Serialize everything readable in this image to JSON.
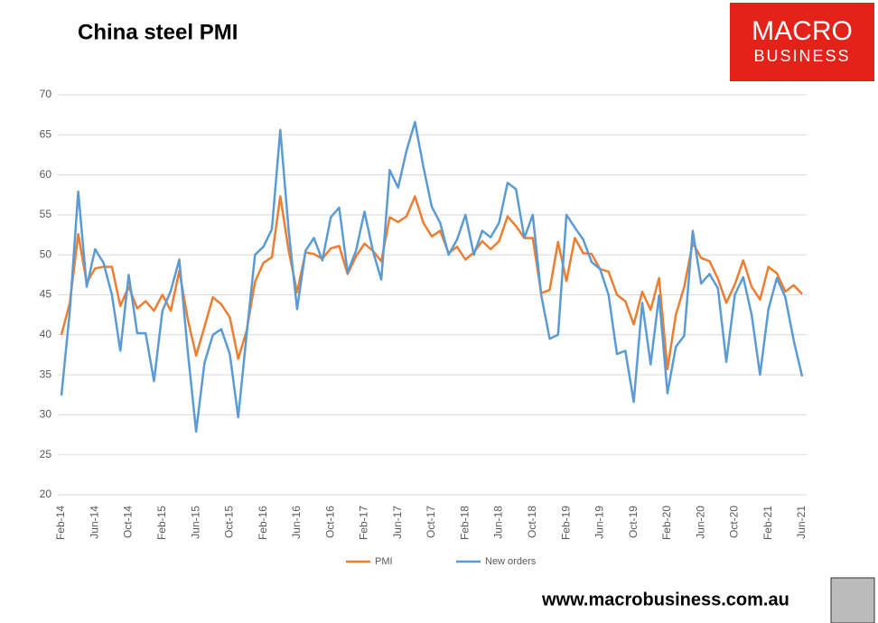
{
  "chart_data": {
    "type": "line",
    "title": "China steel PMI",
    "categories": [
      "Feb-14",
      null,
      null,
      null,
      "Jun-14",
      null,
      null,
      null,
      "Oct-14",
      null,
      null,
      null,
      "Feb-15",
      null,
      null,
      null,
      "Jun-15",
      null,
      null,
      null,
      "Oct-15",
      null,
      null,
      null,
      "Feb-16",
      null,
      null,
      null,
      "Jun-16",
      null,
      null,
      null,
      "Oct-16",
      null,
      null,
      null,
      "Feb-17",
      null,
      null,
      null,
      "Jun-17",
      null,
      null,
      null,
      "Oct-17",
      null,
      null,
      null,
      "Feb-18",
      null,
      null,
      null,
      "Jun-18",
      null,
      null,
      null,
      "Oct-18",
      null,
      null,
      null,
      "Feb-19",
      null,
      null,
      null,
      "Jun-19",
      null,
      null,
      null,
      "Oct-19",
      null,
      null,
      null,
      "Feb-20",
      null,
      null,
      null,
      "Jun-20",
      null,
      null,
      null,
      "Oct-20",
      null,
      null,
      null,
      "Feb-21",
      null,
      null,
      null,
      "Jun-21"
    ],
    "series": [
      {
        "name": "PMI",
        "color": "#ed7d31",
        "values": [
          40,
          44,
          52.6,
          46.5,
          48.3,
          48.5,
          48.5,
          43.6,
          46,
          43.3,
          44.2,
          43,
          45,
          43,
          48,
          42,
          37.4,
          41,
          44.7,
          43.8,
          42.2,
          37,
          40.5,
          46.6,
          49,
          49.7,
          57.3,
          50.5,
          45.3,
          50.3,
          50.1,
          49.5,
          50.8,
          51.1,
          47.6,
          49.8,
          51.4,
          50.5,
          49.2,
          54.7,
          54.1,
          54.8,
          57.3,
          54,
          52.3,
          53,
          50.2,
          51,
          49.4,
          50.3,
          51.7,
          50.7,
          51.7,
          54.8,
          53.6,
          52.1,
          52.1,
          45.2,
          45.6,
          51.6,
          46.7,
          52.1,
          50.2,
          50.1,
          48.2,
          47.9,
          45,
          44.2,
          41.3,
          45.4,
          43.1,
          47.1,
          35.7,
          42.5,
          46,
          51.5,
          49.6,
          49.2,
          47,
          44,
          46.3,
          49.3,
          46,
          44.4,
          48.5,
          47.7,
          45.4,
          46.2,
          45.1
        ]
      },
      {
        "name": "New orders",
        "color": "#5b9bd5",
        "values": [
          32.4,
          43,
          57.9,
          46,
          50.7,
          49,
          45,
          38,
          47.5,
          40.2,
          40.2,
          34.2,
          43,
          45.5,
          49.4,
          38,
          27.9,
          36.5,
          40,
          40.7,
          37.6,
          29.7,
          40,
          50,
          51,
          53.2,
          65.6,
          53,
          43.2,
          50.5,
          52.1,
          49.3,
          54.7,
          55.9,
          47.8,
          50.5,
          55.4,
          50.5,
          46.9,
          60.6,
          58.4,
          63,
          66.6,
          61,
          56,
          54,
          50,
          51.9,
          55,
          50,
          53,
          52.2,
          54,
          59,
          58.2,
          52.1,
          55,
          45,
          39.5,
          40,
          55,
          53.4,
          51.9,
          49.1,
          48.2,
          45,
          37.6,
          38,
          31.6,
          44,
          36.3,
          44.9,
          32.7,
          38.5,
          39.9,
          53,
          46.4,
          47.6,
          45.8,
          36.6,
          45,
          47.2,
          42.5,
          35,
          43.2,
          47.1,
          44.7,
          39.3,
          34.8
        ]
      }
    ],
    "ylim": [
      20,
      70
    ],
    "yticks": [
      20,
      25,
      30,
      35,
      40,
      45,
      50,
      55,
      60,
      65,
      70
    ],
    "grid": true,
    "legend": "bottom"
  },
  "logo": {
    "line1": "MACRO",
    "line2": "BUSINESS"
  },
  "footer": "www.macrobusiness.com.au"
}
